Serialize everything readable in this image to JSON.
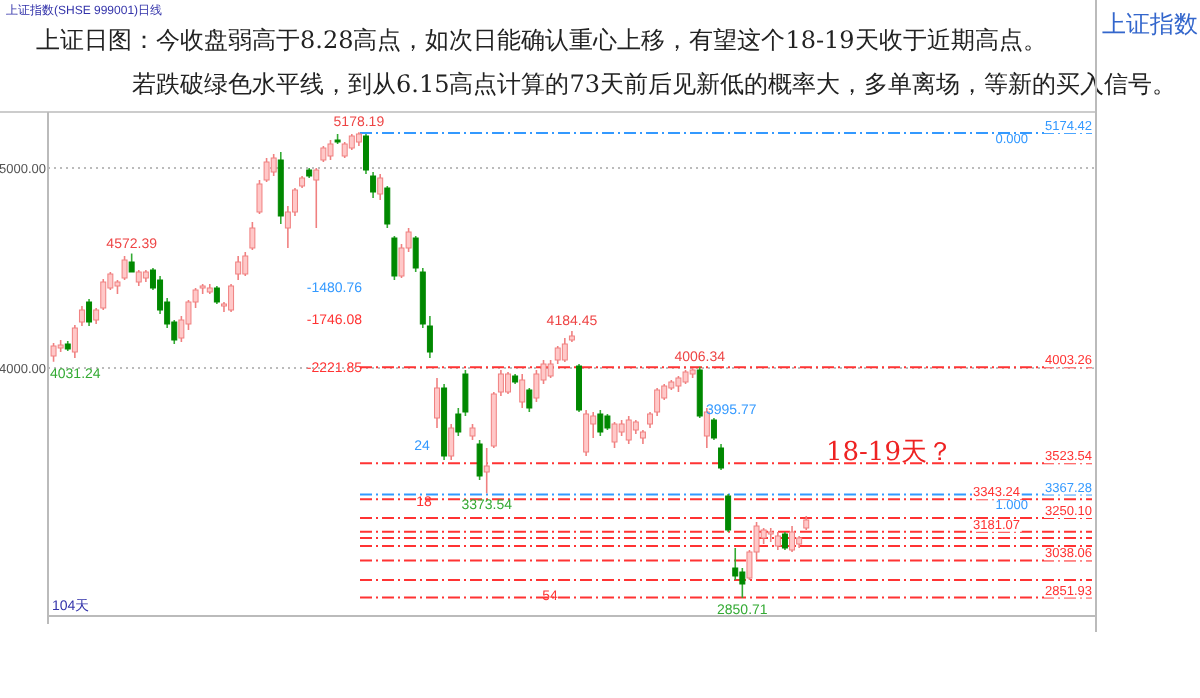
{
  "chart_data": {
    "type": "candlestick",
    "title": "上证日图：今收盘弱高于8.28高点，如次日能确认重心上移，有望这个18-19天收于近期高点。",
    "subtitle": "若跌破绿色水平线，到从6.15高点计算的73天前后见新低的概率大，多单离场，等新的买入信号。",
    "categories": [
      null,
      null,
      null,
      null,
      null,
      null,
      null,
      null,
      null,
      null,
      null,
      null,
      null,
      null,
      null,
      null,
      null,
      null,
      null,
      null,
      null,
      null,
      null,
      null,
      null,
      null,
      null,
      null,
      null,
      null,
      null,
      null,
      null,
      null,
      null,
      null,
      null,
      null,
      null,
      null,
      null,
      null,
      null,
      null,
      null,
      null,
      null,
      null,
      null,
      null,
      null,
      null,
      null,
      null,
      null,
      null,
      null,
      null,
      null,
      null,
      null,
      null,
      null,
      null,
      null,
      null,
      null,
      null,
      null,
      null,
      null,
      null,
      null,
      null,
      null,
      null,
      null,
      null,
      null,
      null,
      null,
      null,
      null,
      null,
      null,
      null,
      null,
      null,
      null,
      null,
      null,
      null,
      null,
      null,
      null,
      null,
      null,
      null,
      null,
      null,
      null,
      null,
      null,
      null,
      null,
      null,
      null
    ],
    "ohlc": [
      [
        4060,
        4125,
        4031.24,
        4110
      ],
      [
        4100,
        4140,
        4080,
        4115
      ],
      [
        4120,
        4135,
        4085,
        4095
      ],
      [
        4080,
        4215,
        4050,
        4200
      ],
      [
        4230,
        4310,
        4210,
        4290
      ],
      [
        4330,
        4345,
        4210,
        4230
      ],
      [
        4240,
        4300,
        4220,
        4290
      ],
      [
        4300,
        4445,
        4290,
        4430
      ],
      [
        4400,
        4480,
        4390,
        4470
      ],
      [
        4410,
        4440,
        4370,
        4430
      ],
      [
        4450,
        4560,
        4440,
        4540
      ],
      [
        4530,
        4572.39,
        4480,
        4480
      ],
      [
        4430,
        4490,
        4410,
        4480
      ],
      [
        4450,
        4490,
        4430,
        4480
      ],
      [
        4490,
        4500,
        4390,
        4400
      ],
      [
        4440,
        4460,
        4270,
        4290
      ],
      [
        4330,
        4350,
        4200,
        4220
      ],
      [
        4230,
        4240,
        4120,
        4140
      ],
      [
        4150,
        4260,
        4130,
        4240
      ],
      [
        4220,
        4340,
        4190,
        4330
      ],
      [
        4330,
        4400,
        4300,
        4390
      ],
      [
        4400,
        4420,
        4370,
        4410
      ],
      [
        4380,
        4420,
        4370,
        4400
      ],
      [
        4400,
        4410,
        4320,
        4330
      ],
      [
        4310,
        4330,
        4280,
        4320
      ],
      [
        4290,
        4420,
        4280,
        4410
      ],
      [
        4470,
        4560,
        4440,
        4530
      ],
      [
        4470,
        4580,
        4460,
        4560
      ],
      [
        4600,
        4730,
        4590,
        4700
      ],
      [
        4780,
        4940,
        4770,
        4920
      ],
      [
        4940,
        5050,
        4930,
        5030
      ],
      [
        4980,
        5070,
        4960,
        5050
      ],
      [
        5040,
        5080,
        4720,
        4760
      ],
      [
        4700,
        4810,
        4600,
        4780
      ],
      [
        4780,
        4900,
        4760,
        4890
      ],
      [
        4910,
        4960,
        4900,
        4950
      ],
      [
        4990,
        5000,
        4950,
        4960
      ],
      [
        4940,
        5000,
        4700,
        4990
      ],
      [
        5040,
        5110,
        5030,
        5100
      ],
      [
        5060,
        5140,
        5040,
        5120
      ],
      [
        5140,
        5170,
        5120,
        5130
      ],
      [
        5060,
        5130,
        5050,
        5120
      ],
      [
        5100,
        5170,
        5090,
        5160
      ],
      [
        5130,
        5178.19,
        5110,
        5170
      ],
      [
        5160,
        5170,
        4970,
        4990
      ],
      [
        4960,
        4980,
        4850,
        4880
      ],
      [
        4870,
        4970,
        4840,
        4950
      ],
      [
        4900,
        4910,
        4700,
        4720
      ],
      [
        4650,
        4660,
        4440,
        4460
      ],
      [
        4460,
        4620,
        4450,
        4600
      ],
      [
        4600,
        4700,
        4580,
        4680
      ],
      [
        4650,
        4660,
        4480,
        4500
      ],
      [
        4480,
        4500,
        4200,
        4220
      ],
      [
        4210,
        4260,
        4050,
        4080
      ],
      [
        3750,
        3950,
        3700,
        3900
      ],
      [
        3900,
        3920,
        3540,
        3560
      ],
      [
        3560,
        3720,
        3540,
        3700
      ],
      [
        3770,
        3800,
        3660,
        3680
      ],
      [
        3970,
        3990,
        3760,
        3780
      ],
      [
        3660,
        3720,
        3640,
        3700
      ],
      [
        3620,
        3640,
        3440,
        3460
      ],
      [
        3480,
        3600,
        3373.54,
        3510
      ],
      [
        3610,
        3880,
        3600,
        3870
      ],
      [
        3880,
        3990,
        3860,
        3970
      ],
      [
        3880,
        3980,
        3870,
        3970
      ],
      [
        3960,
        3970,
        3920,
        3930
      ],
      [
        3830,
        3970,
        3800,
        3940
      ],
      [
        3890,
        3900,
        3780,
        3800
      ],
      [
        3850,
        3990,
        3830,
        3970
      ],
      [
        3940,
        4040,
        3920,
        4020
      ],
      [
        3960,
        4040,
        3950,
        4020
      ],
      [
        4040,
        4110,
        4020,
        4100
      ],
      [
        4040,
        4150,
        4030,
        4120
      ],
      [
        4140,
        4184.45,
        4130,
        4160
      ],
      [
        4010,
        4020,
        3780,
        3790
      ],
      [
        3580,
        3790,
        3560,
        3770
      ],
      [
        3720,
        3780,
        3650,
        3760
      ],
      [
        3770,
        3790,
        3660,
        3680
      ],
      [
        3760,
        3770,
        3690,
        3700
      ],
      [
        3630,
        3730,
        3600,
        3720
      ],
      [
        3680,
        3740,
        3660,
        3720
      ],
      [
        3640,
        3760,
        3620,
        3740
      ],
      [
        3690,
        3740,
        3670,
        3730
      ],
      [
        3650,
        3690,
        3620,
        3680
      ],
      [
        3720,
        3780,
        3700,
        3770
      ],
      [
        3780,
        3900,
        3760,
        3890
      ],
      [
        3850,
        3920,
        3840,
        3910
      ],
      [
        3900,
        3940,
        3890,
        3930
      ],
      [
        3910,
        3960,
        3880,
        3950
      ],
      [
        3930,
        3990,
        3920,
        3980
      ],
      [
        3970,
        4000,
        3950,
        3990
      ],
      [
        3990,
        4006.34,
        3750,
        3760
      ],
      [
        3660,
        3800,
        3600,
        3780
      ],
      [
        3740,
        3750,
        3640,
        3650
      ],
      [
        3600,
        3620,
        3490,
        3500
      ],
      [
        3360,
        3370,
        3180,
        3190
      ],
      [
        3000,
        3100,
        2940,
        2960
      ],
      [
        2980,
        3000,
        2850.71,
        2920
      ],
      [
        2950,
        3090,
        2940,
        3080
      ],
      [
        3080,
        3230,
        3040,
        3210
      ],
      [
        3150,
        3200,
        3120,
        3190
      ],
      [
        3170,
        3200,
        3130,
        3180
      ],
      [
        3110,
        3180,
        3090,
        3160
      ],
      [
        3170,
        3180,
        3090,
        3100
      ],
      [
        3090,
        3210,
        3080,
        3180
      ],
      [
        3120,
        3160,
        3100,
        3150
      ],
      [
        3200,
        3260,
        3190,
        3240
      ]
    ],
    "ylim": [
      2760,
      5260
    ],
    "yticks": [
      {
        "value": 4000,
        "label": "4000.00"
      },
      {
        "value": 5000,
        "label": "5000.00"
      }
    ],
    "grid": "y",
    "ref_lines": [
      {
        "axis": "y",
        "value": 5174.42,
        "label": "5174.42",
        "color": "#3399ff",
        "line_style": "dashed"
      },
      {
        "axis": "y",
        "value": 4003.26,
        "label": "4003.26",
        "color": "#ff3333",
        "line_style": "dashed"
      },
      {
        "axis": "y",
        "value": 3523.54,
        "label": "3523.54",
        "color": "#ff3333",
        "line_style": "dashed"
      },
      {
        "axis": "y",
        "value": 3367.28,
        "label": "3367.28",
        "color": "#3399ff",
        "line_style": "dashed"
      },
      {
        "axis": "y",
        "value": 3343.24,
        "label": "3343.24",
        "color": "#ff3333",
        "line_style": "dashed"
      },
      {
        "axis": "y",
        "value": 3250.1,
        "label": "3250.10",
        "color": "#ff3333",
        "line_style": "dashed"
      },
      {
        "axis": "y",
        "value": 3181.07,
        "label": "3181.07",
        "color": "#ff3333",
        "line_style": "dashed"
      },
      {
        "axis": "y",
        "value": 3150,
        "color": "#ff3333",
        "line_style": "dashed"
      },
      {
        "axis": "y",
        "value": 3110,
        "color": "#ff3333",
        "line_style": "dashed"
      },
      {
        "axis": "y",
        "value": 3038.06,
        "label": "3038.06",
        "color": "#ff3333",
        "line_style": "dashed"
      },
      {
        "axis": "y",
        "value": 2940,
        "color": "#ff3333",
        "line_style": "dashed"
      },
      {
        "axis": "y",
        "value": 2851.93,
        "label": "2851.93",
        "color": "#ff3333",
        "line_style": "dashed"
      }
    ],
    "annotations": [
      "-1480.76",
      "-1746.08",
      "-2221.85",
      "24",
      "18",
      "54",
      "104天",
      "18-19天？",
      "3995.77",
      "上证指数(SHSE 999001)日线",
      "上证指数",
      {
        "text": "5178.19",
        "y": 5178.19
      },
      {
        "text": "4572.39",
        "y": 4572.39
      },
      {
        "text": "4031.24",
        "y": 4031.24
      },
      {
        "text": "4184.45",
        "y": 4184.45
      },
      {
        "text": "4006.34",
        "y": 4006.34
      },
      {
        "text": "3373.54",
        "y": 3373.54
      },
      {
        "text": "2850.71",
        "y": 2850.71
      },
      {
        "text": "0.000",
        "y": 5174.42
      },
      {
        "text": "1.000",
        "y": 3343.24
      }
    ]
  }
}
